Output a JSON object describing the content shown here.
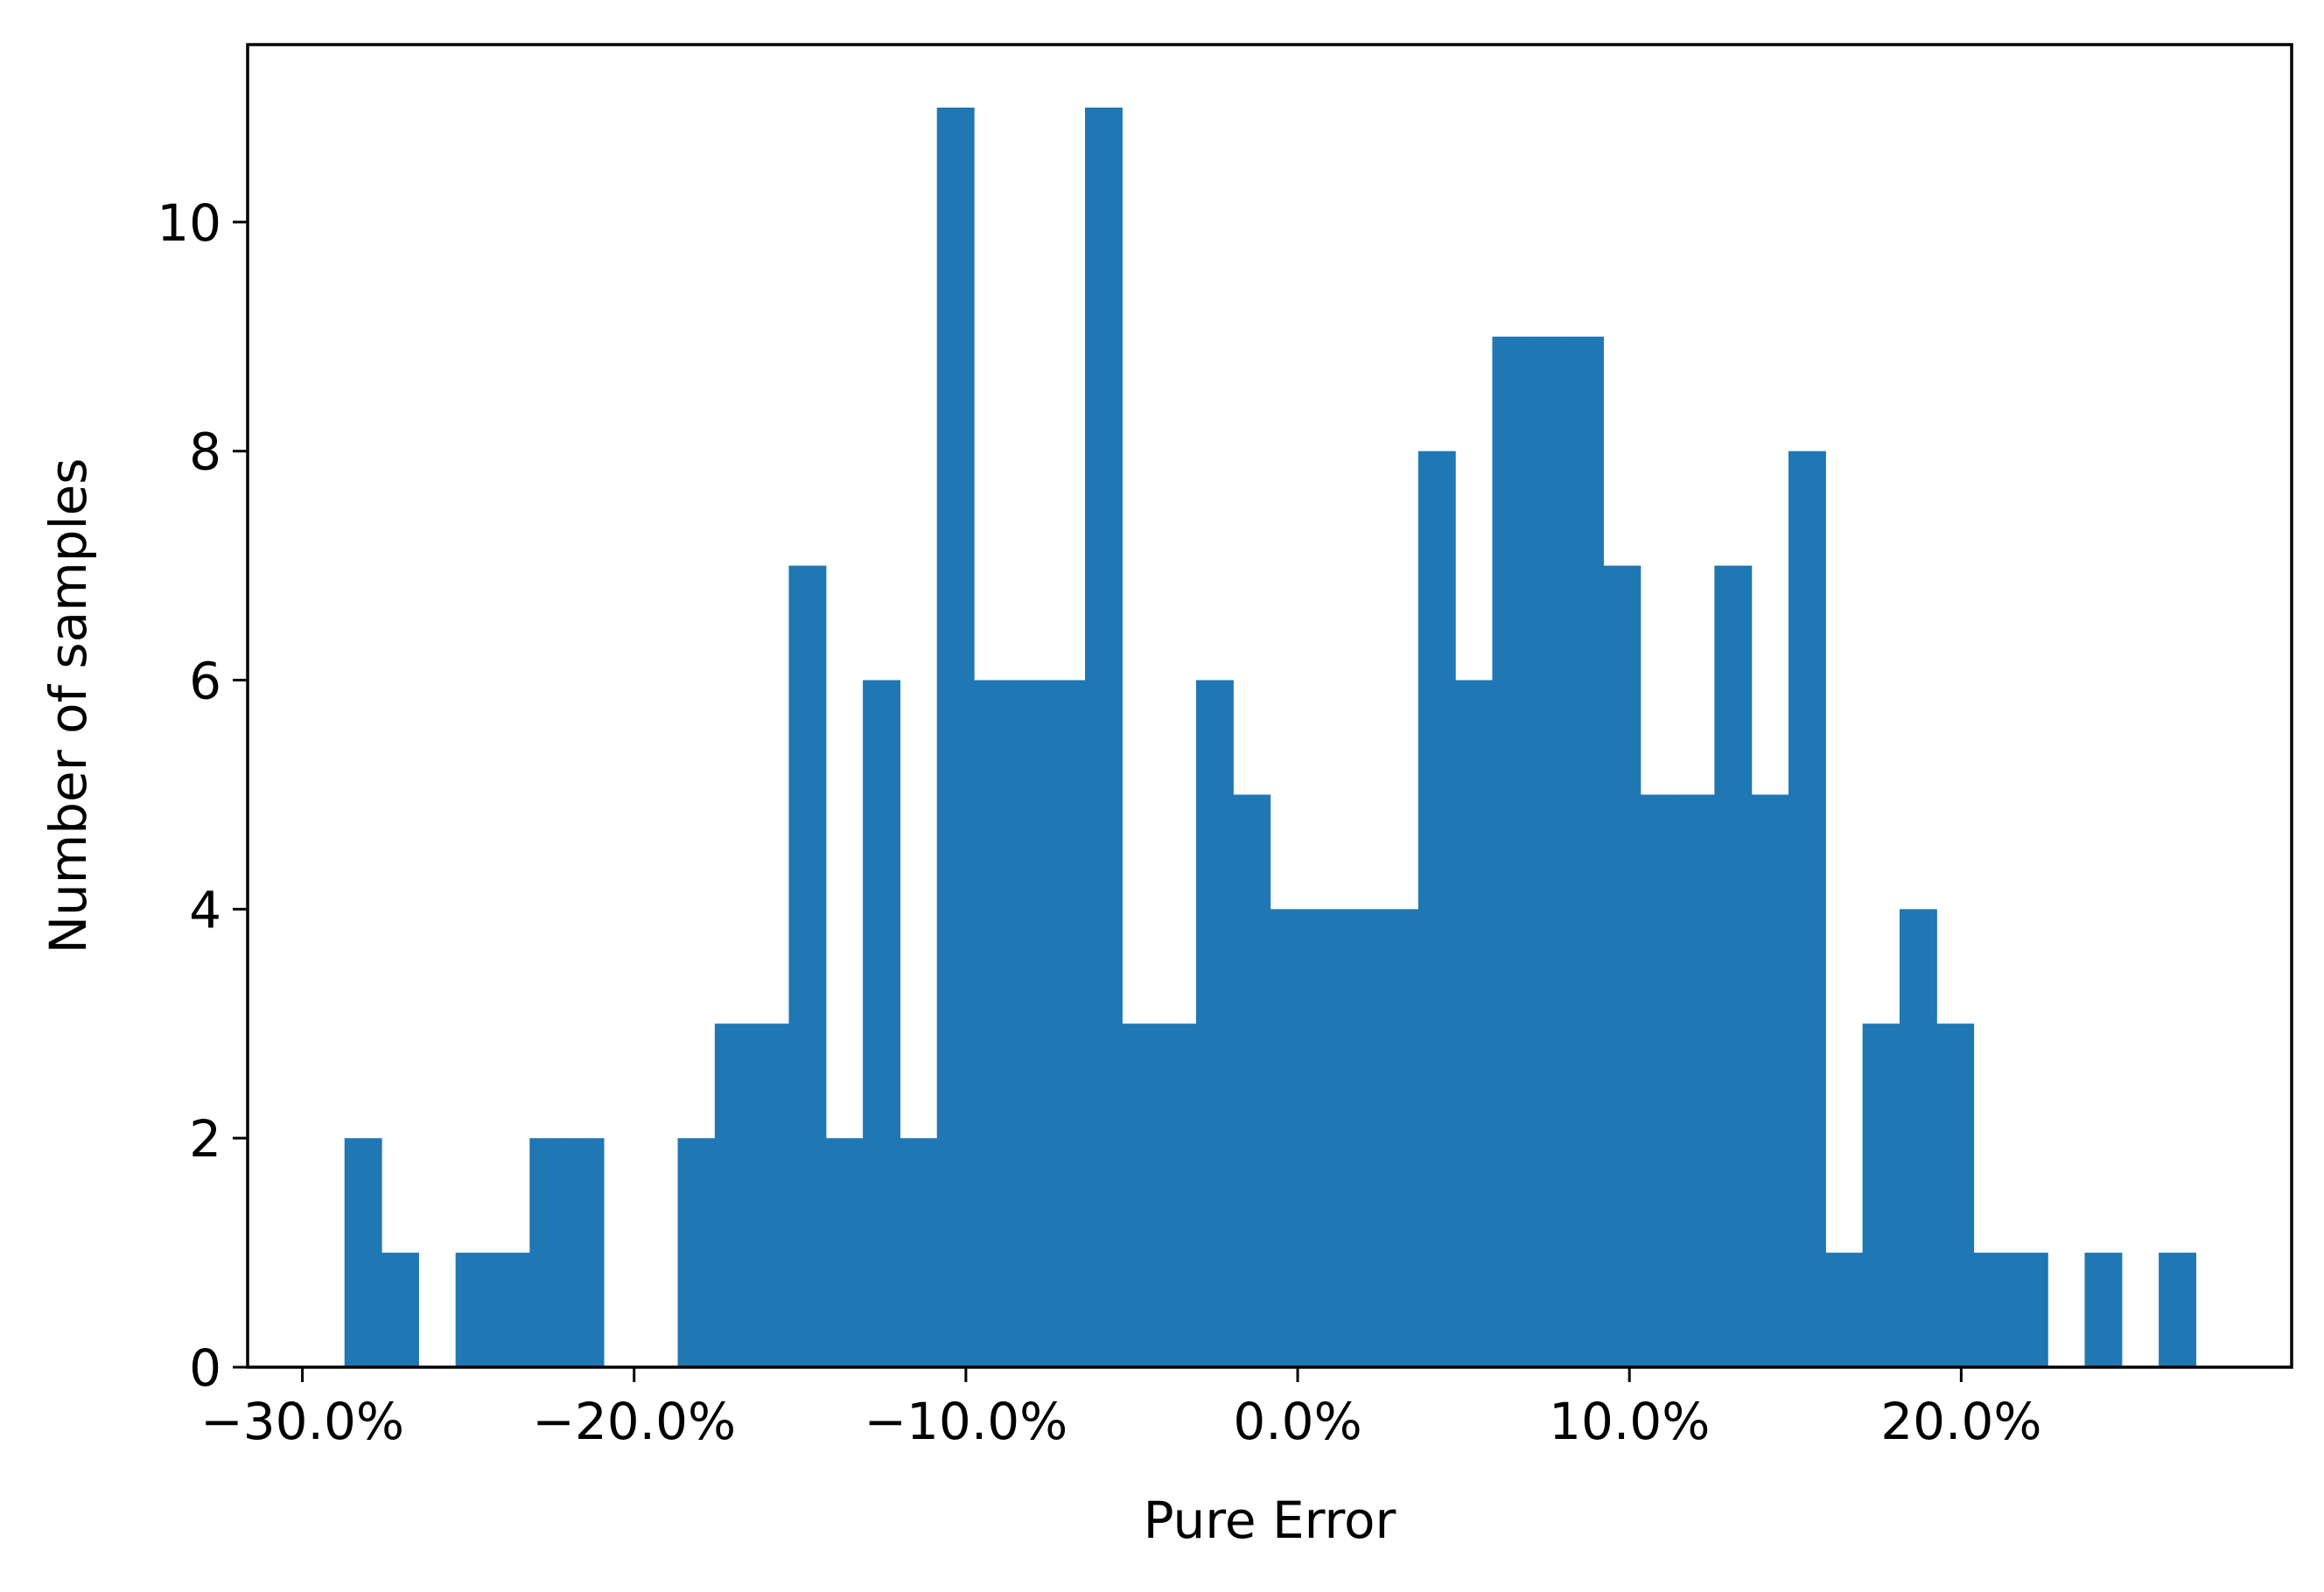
{
  "chart_data": {
    "type": "bar",
    "title": "",
    "xlabel": "Pure Error",
    "ylabel": "Number of samples",
    "bin_width": 0.01116,
    "bin_start": -0.2873,
    "counts": [
      2,
      1,
      0,
      1,
      1,
      2,
      2,
      0,
      0,
      2,
      3,
      3,
      7,
      2,
      6,
      2,
      11,
      6,
      6,
      6,
      11,
      3,
      3,
      6,
      5,
      4,
      4,
      4,
      4,
      8,
      6,
      9,
      9,
      9,
      7,
      5,
      5,
      7,
      5,
      8,
      1,
      3,
      4,
      3,
      1,
      1,
      0,
      1,
      0,
      1
    ],
    "xlim": [
      -0.3165,
      0.2996
    ],
    "ylim": [
      0,
      11.55
    ],
    "x_ticks": [
      -0.3,
      -0.2,
      -0.1,
      0.0,
      0.1,
      0.2
    ],
    "x_tick_labels": [
      "−30.0%",
      "−20.0%",
      "−10.0%",
      "0.0%",
      "10.0%",
      "20.0%"
    ],
    "y_ticks": [
      0,
      2,
      4,
      6,
      8,
      10
    ],
    "y_tick_labels": [
      "0",
      "2",
      "4",
      "6",
      "8",
      "10"
    ],
    "bar_color": "#1f77b4",
    "grid": false,
    "legend": "none"
  }
}
